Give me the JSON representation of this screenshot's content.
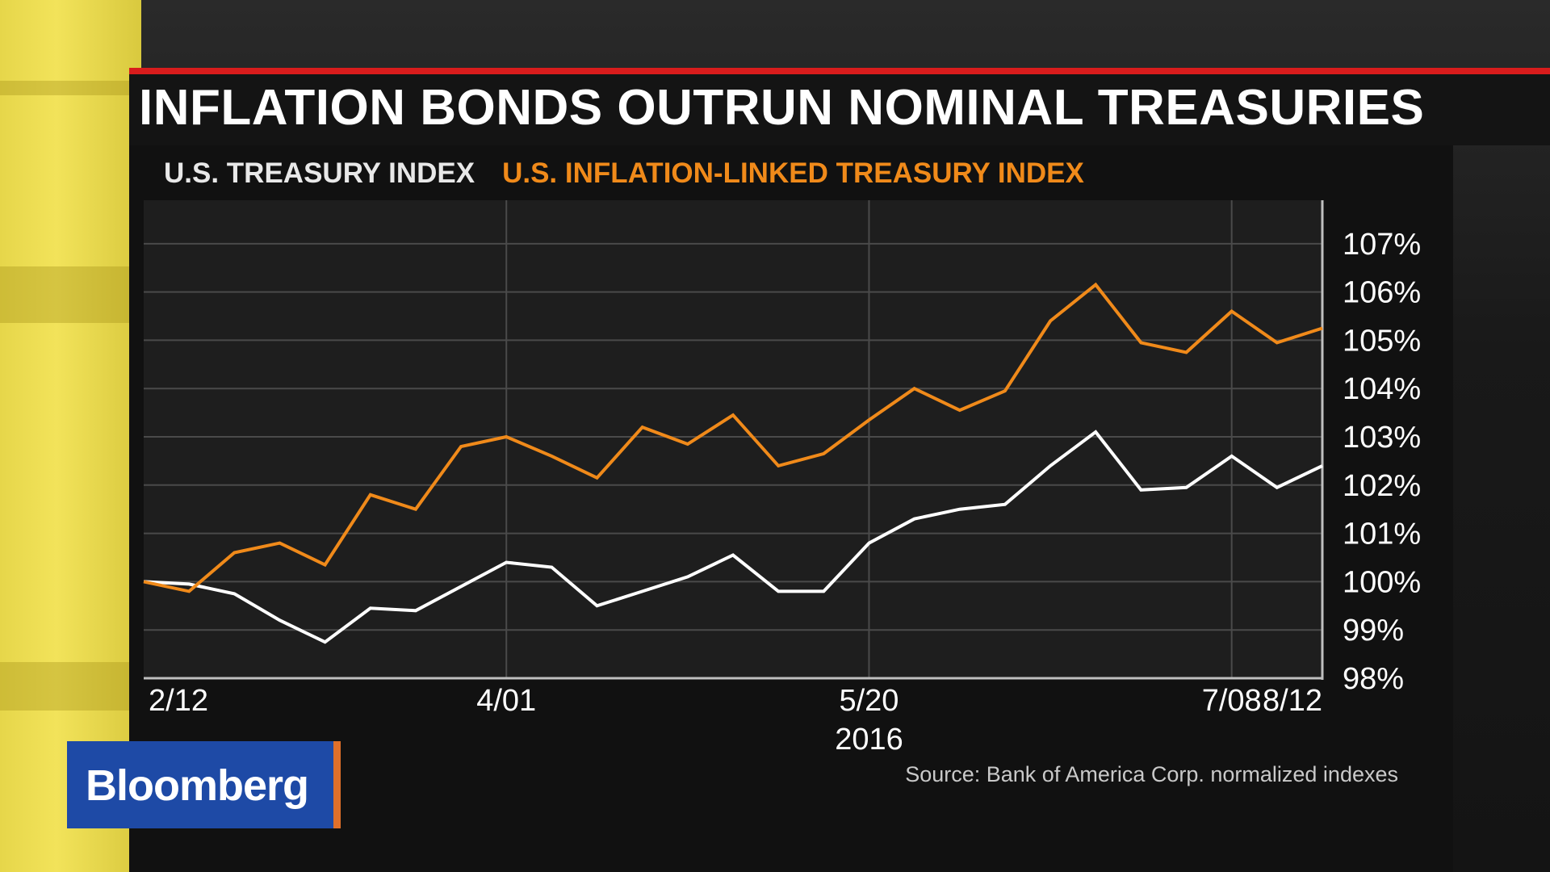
{
  "title": "INFLATION BONDS OUTRUN NOMINAL TREASURIES",
  "source": "Source: Bank of America Corp. normalized indexes",
  "logo": "Bloomberg",
  "colors": {
    "treasury": "#ffffff",
    "inflation_linked": "#f08a1a",
    "title_rule": "#d81c1c",
    "logo_bg": "#1e4aa6"
  },
  "chart_data": {
    "type": "line",
    "title": "INFLATION BONDS OUTRUN NOMINAL TREASURIES",
    "xlabel": "",
    "ylabel": "",
    "x_ticks": [
      "2/12",
      "4/01",
      "5/20",
      "7/08",
      "8/12"
    ],
    "x_year_label": "2016",
    "y_ticks": [
      "98%",
      "99%",
      "100%",
      "101%",
      "102%",
      "103%",
      "104%",
      "105%",
      "106%",
      "107%"
    ],
    "ylim": [
      98,
      107.9
    ],
    "y_axis_side": "right",
    "grid": true,
    "legend_placement": "top-left",
    "x_points": 27,
    "series": [
      {
        "name": "U.S. TREASURY INDEX",
        "color": "#ffffff",
        "values": [
          100.0,
          99.95,
          99.75,
          99.2,
          98.75,
          99.45,
          99.4,
          99.9,
          100.4,
          100.3,
          99.5,
          99.8,
          100.1,
          100.55,
          99.8,
          99.8,
          100.8,
          101.3,
          101.5,
          101.6,
          102.4,
          103.1,
          101.9,
          101.95,
          102.6,
          101.95,
          102.4
        ]
      },
      {
        "name": "U.S. INFLATION-LINKED TREASURY INDEX",
        "color": "#f08a1a",
        "values": [
          100.0,
          99.8,
          100.6,
          100.8,
          100.35,
          101.8,
          101.5,
          102.8,
          103.0,
          102.6,
          102.15,
          103.2,
          102.85,
          103.45,
          102.4,
          102.65,
          103.35,
          104.0,
          103.55,
          103.95,
          105.4,
          106.15,
          104.95,
          104.75,
          105.6,
          104.95,
          105.25
        ]
      }
    ]
  }
}
